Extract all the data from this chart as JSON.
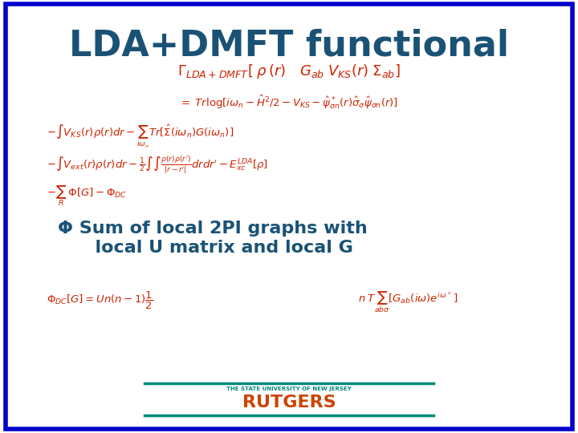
{
  "title": "LDA+DMFT functional",
  "title_color": "#1a5276",
  "title_fontsize": 32,
  "background_color": "#ffffff",
  "border_color": "#0000cc",
  "border_linewidth": 4,
  "formula_color": "#cc2200",
  "blue_text_color": "#1a5276",
  "teal_color": "#00897b",
  "rutgers_color": "#cc4400",
  "rutgers_text": "THE STATE UNIVERSITY OF NEW JERSEY",
  "rutgers_big": "RUTGERS",
  "bullet_text": "Φ Sum of local 2PI graphs with\n      local U matrix and local G"
}
